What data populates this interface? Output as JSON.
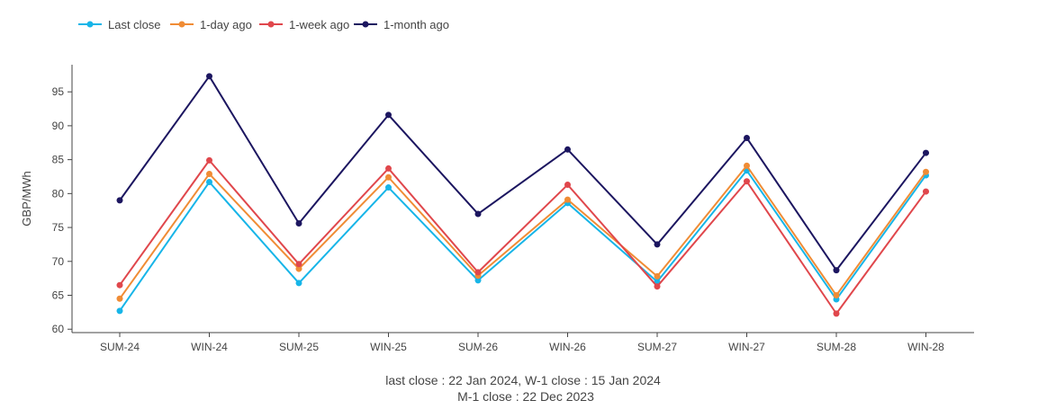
{
  "chart_data": {
    "type": "line",
    "title": "",
    "xlabel": "",
    "ylabel": "GBP/MWh",
    "categories": [
      "SUM-24",
      "WIN-24",
      "SUM-25",
      "WIN-25",
      "SUM-26",
      "WIN-26",
      "SUM-27",
      "WIN-27",
      "SUM-28",
      "WIN-28"
    ],
    "ylim": [
      59.5,
      99
    ],
    "yticks": [
      60,
      65,
      70,
      75,
      80,
      85,
      90,
      95
    ],
    "grid": false,
    "legend_position": "top-left",
    "series": [
      {
        "name": "Last close",
        "color": "#17b5e8",
        "values": [
          62.7,
          81.7,
          66.8,
          80.9,
          67.2,
          78.6,
          67.0,
          83.4,
          64.4,
          82.7
        ]
      },
      {
        "name": "1-day ago",
        "color": "#f08c35",
        "values": [
          64.5,
          82.9,
          68.9,
          82.4,
          67.9,
          79.1,
          67.8,
          84.1,
          65.0,
          83.2
        ]
      },
      {
        "name": "1-week ago",
        "color": "#e0474c",
        "values": [
          66.5,
          84.9,
          69.6,
          83.7,
          68.4,
          81.3,
          66.3,
          81.8,
          62.3,
          80.3
        ]
      },
      {
        "name": "1-month ago",
        "color": "#1c1660",
        "values": [
          79.0,
          97.3,
          75.6,
          91.6,
          77.0,
          86.5,
          72.5,
          88.2,
          68.7,
          86.0
        ]
      }
    ],
    "footer": [
      "last close : 22 Jan 2024, W-1 close : 15 Jan 2024",
      "M-1 close : 22 Dec 2023"
    ]
  }
}
